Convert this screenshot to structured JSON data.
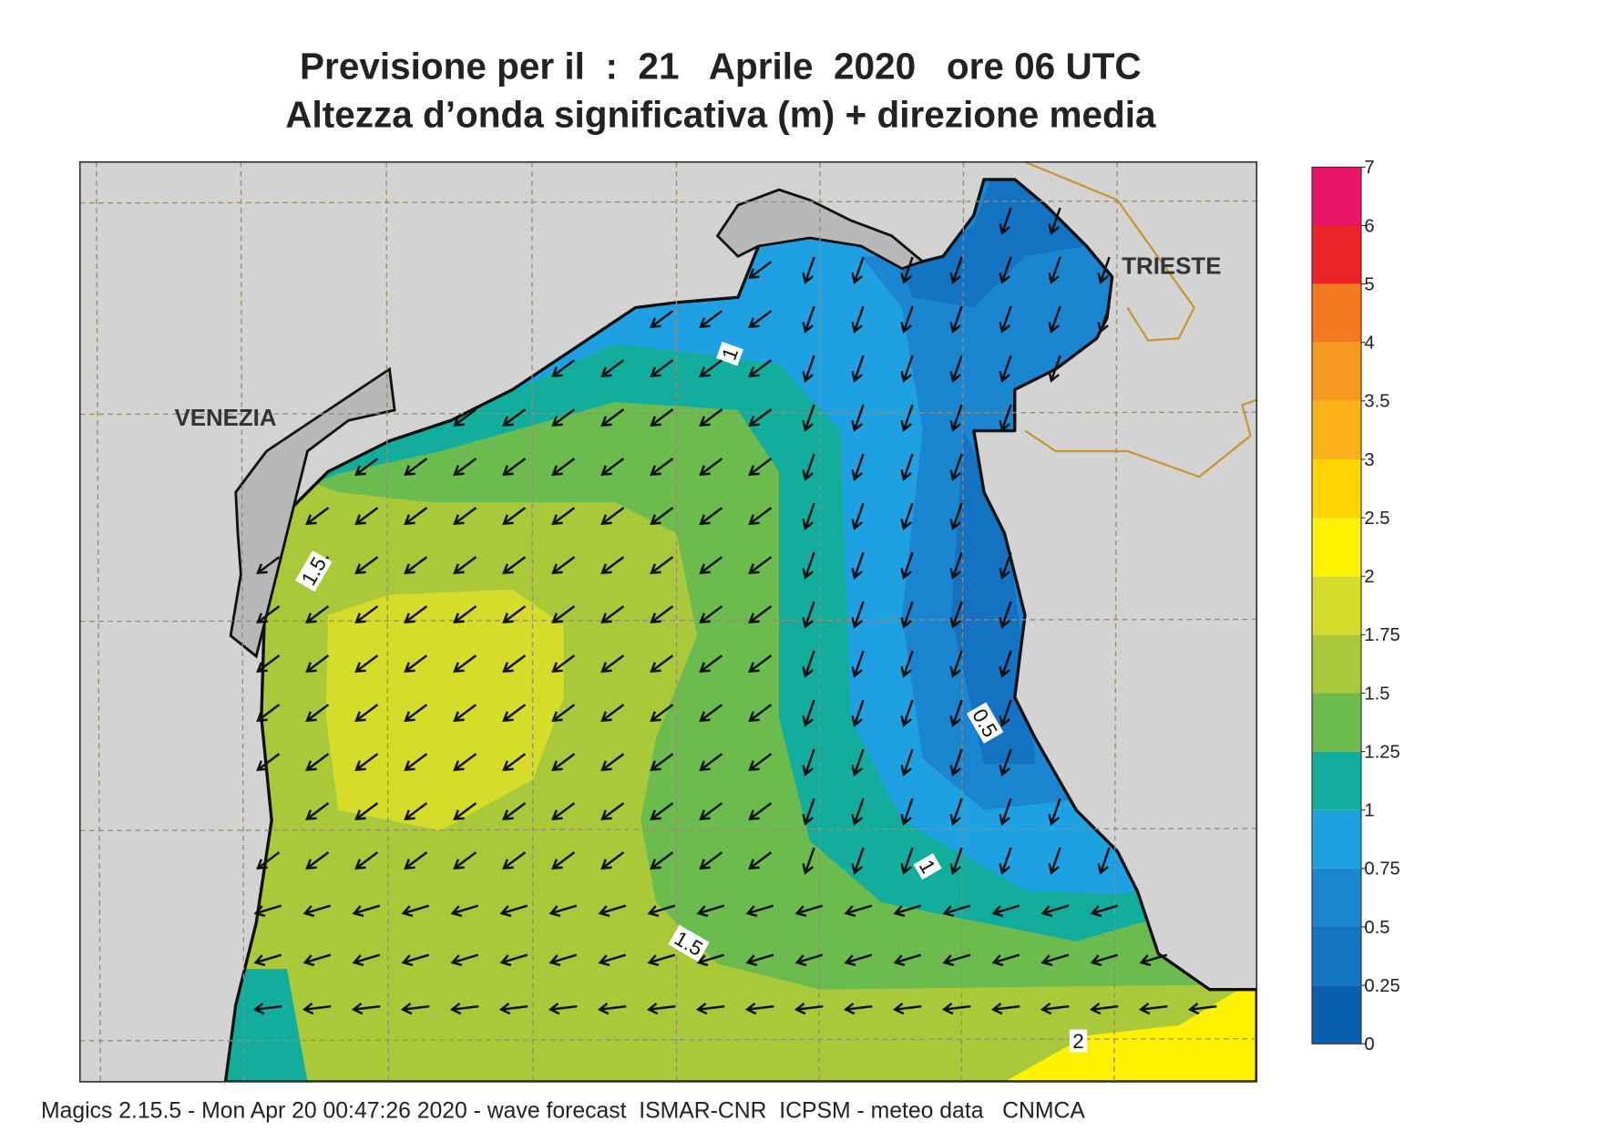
{
  "title": "Previsione per il  :  21   Aprile  2020   ore 06 UTC",
  "subtitle": "Altezza d’onda significativa (m) + direzione media",
  "places": [
    "VENEZIA",
    "TRIESTE"
  ],
  "contour_labels": [
    1,
    1.5,
    0.5,
    1,
    1.5,
    2
  ],
  "colorbar": {
    "levels": [
      0,
      0.25,
      0.5,
      0.75,
      1,
      1.25,
      1.5,
      1.75,
      2,
      2.5,
      3,
      3.5,
      4,
      5,
      6,
      7
    ],
    "colors": [
      "#0b5fb0",
      "#1472c2",
      "#1a86d2",
      "#1fa0e2",
      "#13ad9e",
      "#6cbb4f",
      "#a9c93b",
      "#d5dd2a",
      "#fff200",
      "#ffd400",
      "#fbb118",
      "#f7991e",
      "#f47a20",
      "#ec2227",
      "#ec1467"
    ]
  },
  "footer": "Magics 2.15.5 - Mon Apr 20 00:47:26 2020 - wave forecast  ISMAR-CNR  ICPSM - meteo data   CNMCA"
}
